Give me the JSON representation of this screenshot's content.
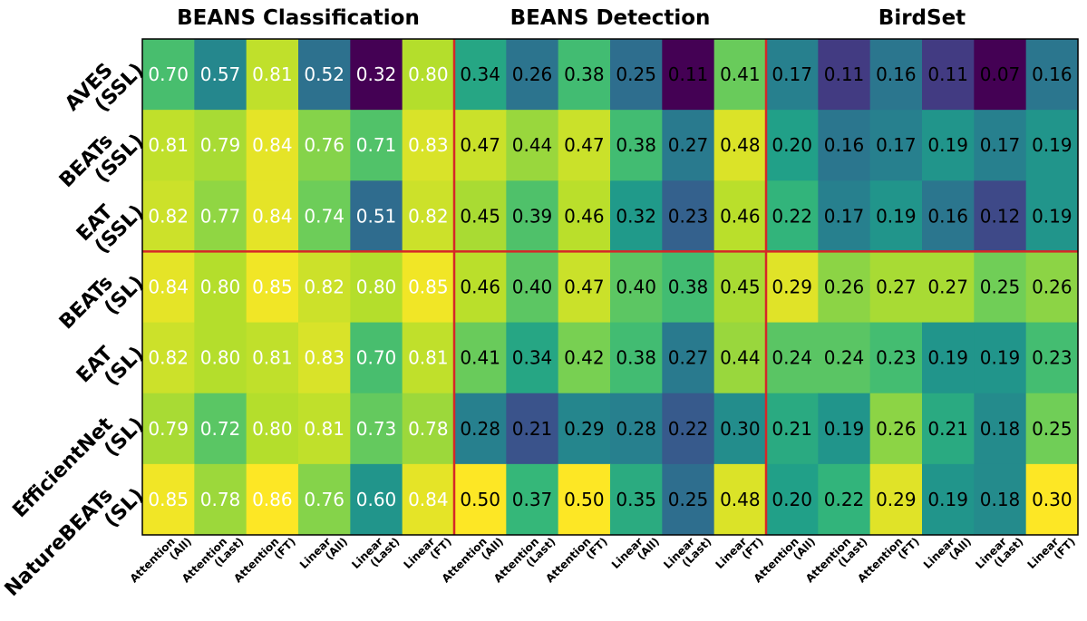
{
  "chart_data": {
    "type": "heatmap",
    "colormap": "viridis",
    "color_range": "per column group",
    "group_titles": [
      "BEANS Classification",
      "BEANS Detection",
      "BirdSet"
    ],
    "column_labels": [
      [
        "Attention",
        "(All)"
      ],
      [
        "Attention",
        "(Last)"
      ],
      [
        "Attention",
        "(FT)"
      ],
      [
        "Linear",
        "(All)"
      ],
      [
        "Linear",
        "(Last)"
      ],
      [
        "Linear",
        "(FT)"
      ],
      [
        "Attention",
        "(All)"
      ],
      [
        "Attention",
        "(Last)"
      ],
      [
        "Attention",
        "(FT)"
      ],
      [
        "Linear",
        "(All)"
      ],
      [
        "Linear",
        "(Last)"
      ],
      [
        "Linear",
        "(FT)"
      ],
      [
        "Attention",
        "(All)"
      ],
      [
        "Attention",
        "(Last)"
      ],
      [
        "Attention",
        "(FT)"
      ],
      [
        "Linear",
        "(All)"
      ],
      [
        "Linear",
        "(Last)"
      ],
      [
        "Linear",
        "(FT)"
      ]
    ],
    "row_labels": [
      [
        "AVES",
        "(SSL)"
      ],
      [
        "BEATs",
        "(SSL)"
      ],
      [
        "EAT",
        "(SSL)"
      ],
      [
        "BEATs",
        "(SL)"
      ],
      [
        "EAT",
        "(SL)"
      ],
      [
        "EfficientNet",
        "(SL)"
      ],
      [
        "NatureBEATs",
        "(SL)"
      ]
    ],
    "values": [
      [
        0.7,
        0.57,
        0.81,
        0.52,
        0.32,
        0.8,
        0.34,
        0.26,
        0.38,
        0.25,
        0.11,
        0.41,
        0.17,
        0.11,
        0.16,
        0.11,
        0.07,
        0.16
      ],
      [
        0.81,
        0.79,
        0.84,
        0.76,
        0.71,
        0.83,
        0.47,
        0.44,
        0.47,
        0.38,
        0.27,
        0.48,
        0.2,
        0.16,
        0.17,
        0.19,
        0.17,
        0.19
      ],
      [
        0.82,
        0.77,
        0.84,
        0.74,
        0.51,
        0.82,
        0.45,
        0.39,
        0.46,
        0.32,
        0.23,
        0.46,
        0.22,
        0.17,
        0.19,
        0.16,
        0.12,
        0.19
      ],
      [
        0.84,
        0.8,
        0.85,
        0.82,
        0.8,
        0.85,
        0.46,
        0.4,
        0.47,
        0.4,
        0.38,
        0.45,
        0.29,
        0.26,
        0.27,
        0.27,
        0.25,
        0.26
      ],
      [
        0.82,
        0.8,
        0.81,
        0.83,
        0.7,
        0.81,
        0.41,
        0.34,
        0.42,
        0.38,
        0.27,
        0.44,
        0.24,
        0.24,
        0.23,
        0.19,
        0.19,
        0.23
      ],
      [
        0.79,
        0.72,
        0.8,
        0.81,
        0.73,
        0.78,
        0.28,
        0.21,
        0.29,
        0.28,
        0.22,
        0.3,
        0.21,
        0.19,
        0.26,
        0.21,
        0.18,
        0.25
      ],
      [
        0.85,
        0.78,
        0.86,
        0.76,
        0.6,
        0.84,
        0.5,
        0.37,
        0.5,
        0.35,
        0.25,
        0.48,
        0.2,
        0.22,
        0.29,
        0.19,
        0.18,
        0.3
      ]
    ],
    "group_color_ranges": [
      [
        0.32,
        0.86
      ],
      [
        0.11,
        0.5
      ],
      [
        0.07,
        0.3
      ]
    ],
    "label_text_colors": [
      "#ffffff",
      "#000000",
      "#000000"
    ],
    "separator_color": "#d62728"
  }
}
